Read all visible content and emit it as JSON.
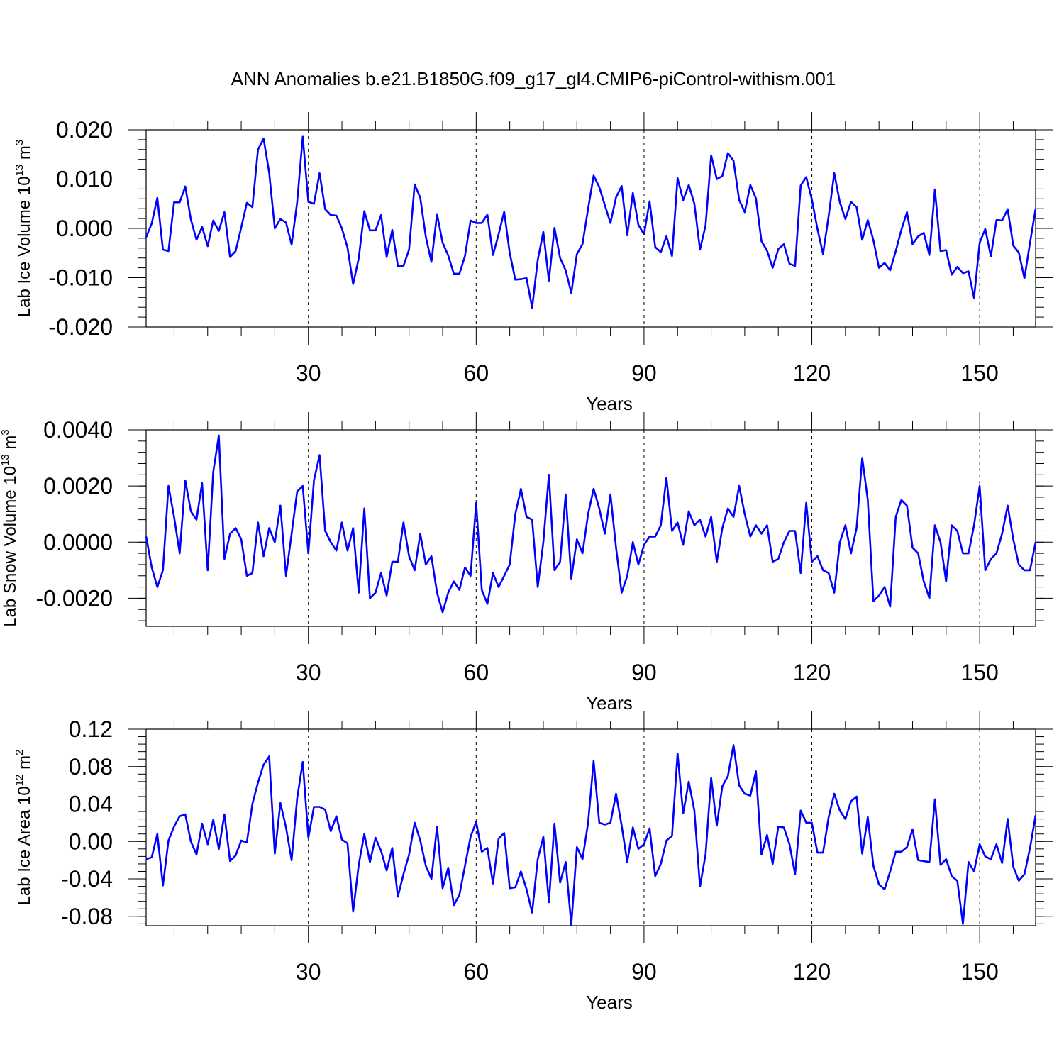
{
  "title": "ANN Anomalies b.e21.B1850G.f09_g17_gl4.CMIP6-piControl-withism.001",
  "line_color": "#0000ff",
  "chart_data": [
    {
      "type": "line",
      "ylabel": "Lab Ice Volume 10^13 m^3",
      "ylabel_base": "Lab Ice Volume 10",
      "ylabel_exp1": "13",
      "ylabel_unit": "m",
      "ylabel_exp2": "3",
      "xlabel": "Years",
      "xlim": [
        1,
        160
      ],
      "ylim": [
        -0.02,
        0.02
      ],
      "xticks": [
        30,
        60,
        90,
        120,
        150
      ],
      "xtick_labels": [
        "30",
        "60",
        "90",
        "120",
        "150"
      ],
      "yticks": [
        -0.02,
        -0.01,
        0.0,
        0.01,
        0.02
      ],
      "ytick_labels": [
        "-0.020",
        "-0.010",
        "0.000",
        "0.010",
        "0.020"
      ],
      "y_minor_step": 0.002,
      "grid": "dashed vertical lines at 30, 60, 90, 120, 150",
      "series": [
        {
          "values": [
            -0.0018,
            0.001,
            0.0062,
            -0.0043,
            -0.0046,
            0.0053,
            0.0053,
            0.0085,
            0.0018,
            -0.0023,
            0.0003,
            -0.0036,
            0.0016,
            -0.0005,
            0.0033,
            -0.0058,
            -0.0046,
            0.0002,
            0.0052,
            0.0043,
            0.016,
            0.0182,
            0.0113,
            0.0,
            0.0019,
            0.0012,
            -0.0033,
            0.0053,
            0.0186,
            0.0054,
            0.005,
            0.0112,
            0.0039,
            0.0027,
            0.0026,
            0.0,
            -0.0039,
            -0.0113,
            -0.0061,
            0.0035,
            -0.0004,
            -0.0004,
            0.0027,
            -0.0058,
            -0.0003,
            -0.0076,
            -0.0076,
            -0.0043,
            0.0089,
            0.0062,
            -0.0017,
            -0.0068,
            0.0029,
            -0.0029,
            -0.0055,
            -0.0092,
            -0.0092,
            -0.0056,
            0.0016,
            0.0011,
            0.0011,
            0.0028,
            -0.0054,
            -0.0012,
            0.0034,
            -0.005,
            -0.0104,
            -0.0103,
            -0.0101,
            -0.0161,
            -0.0064,
            -0.0007,
            -0.0106,
            0.0001,
            -0.006,
            -0.0085,
            -0.0131,
            -0.0052,
            -0.0032,
            0.004,
            0.0107,
            0.0084,
            0.0047,
            0.0011,
            0.0063,
            0.0086,
            -0.0014,
            0.0072,
            0.0007,
            -0.0012,
            0.0055,
            -0.0038,
            -0.0048,
            -0.0016,
            -0.0056,
            0.0102,
            0.0057,
            0.0088,
            0.005,
            -0.0043,
            0.0006,
            0.0148,
            0.01,
            0.0106,
            0.0153,
            0.0137,
            0.0058,
            0.0033,
            0.0088,
            0.0061,
            -0.0026,
            -0.0045,
            -0.008,
            -0.0042,
            -0.0032,
            -0.0072,
            -0.0076,
            0.0087,
            0.0104,
            0.0059,
            -0.0001,
            -0.0052,
            0.0025,
            0.0112,
            0.0053,
            0.0019,
            0.0054,
            0.0043,
            -0.0023,
            0.0017,
            -0.0024,
            -0.008,
            -0.007,
            -0.0085,
            -0.0046,
            -0.0003,
            0.0033,
            -0.0032,
            -0.0016,
            -0.0009,
            -0.0054,
            0.0079,
            -0.0046,
            -0.0044,
            -0.0094,
            -0.0078,
            -0.0091,
            -0.0087,
            -0.0141,
            -0.0029,
            -0.0001,
            -0.0057,
            0.0017,
            0.0016,
            0.0039,
            -0.0035,
            -0.0049,
            -0.0101,
            -0.0029,
            0.004
          ]
        }
      ]
    },
    {
      "type": "line",
      "ylabel": "Lab Snow Volume 10^13 m^3",
      "ylabel_base": "Lab Snow Volume 10",
      "ylabel_exp1": "13",
      "ylabel_unit": "m",
      "ylabel_exp2": "3",
      "xlabel": "Years",
      "xlim": [
        1,
        160
      ],
      "ylim": [
        -0.003,
        0.004
      ],
      "xticks": [
        30,
        60,
        90,
        120,
        150
      ],
      "xtick_labels": [
        "30",
        "60",
        "90",
        "120",
        "150"
      ],
      "yticks": [
        -0.002,
        0.0,
        0.002,
        0.004
      ],
      "ytick_labels": [
        "-0.0020",
        "0.0000",
        "0.0020",
        "0.0040"
      ],
      "y_minor_step": 0.0004,
      "grid": "dashed vertical lines at 30, 60, 90, 120, 150",
      "series": [
        {
          "values": [
            0.0002,
            -0.0009,
            -0.0016,
            -0.001,
            0.002,
            0.0009,
            -0.0004,
            0.0022,
            0.0011,
            0.0008,
            0.0021,
            -0.001,
            0.0025,
            0.0038,
            -0.0006,
            0.0003,
            0.0005,
            0.0001,
            -0.0012,
            -0.0011,
            0.0007,
            -0.0005,
            0.0005,
            0.0,
            0.0013,
            -0.0012,
            0.0003,
            0.0018,
            0.002,
            -0.0004,
            0.0022,
            0.0031,
            0.0004,
            0.0,
            -0.0003,
            0.0007,
            -0.0003,
            0.0005,
            -0.0018,
            0.0012,
            -0.002,
            -0.0018,
            -0.0011,
            -0.0019,
            -0.0007,
            -0.0007,
            0.0007,
            -0.0005,
            -0.001,
            0.0003,
            -0.0008,
            -0.0005,
            -0.0018,
            -0.0025,
            -0.0018,
            -0.0014,
            -0.0017,
            -0.0009,
            -0.0012,
            0.0014,
            -0.0017,
            -0.0022,
            -0.0011,
            -0.0016,
            -0.0012,
            -0.0008,
            0.001,
            0.0019,
            0.0009,
            0.0008,
            -0.0016,
            0.0,
            0.0024,
            -0.001,
            -0.0007,
            0.0017,
            -0.0013,
            0.0001,
            -0.0004,
            0.001,
            0.0019,
            0.0012,
            0.0003,
            0.0017,
            -0.0002,
            -0.0018,
            -0.0012,
            0.0,
            -0.0008,
            -0.0001,
            0.0002,
            0.0002,
            0.0006,
            0.0023,
            0.0004,
            0.0007,
            -0.0001,
            0.0011,
            0.0006,
            0.0008,
            0.0002,
            0.0009,
            -0.0007,
            0.0005,
            0.0012,
            0.0009,
            0.002,
            0.001,
            0.0002,
            0.0006,
            0.0003,
            0.0006,
            -0.0007,
            -0.0006,
            0.0,
            0.0004,
            0.0004,
            -0.0011,
            0.0014,
            -0.0007,
            -0.0005,
            -0.001,
            -0.0011,
            -0.0018,
            0.0,
            0.0006,
            -0.0004,
            0.0005,
            0.003,
            0.0015,
            -0.0021,
            -0.0019,
            -0.0016,
            -0.0023,
            0.0009,
            0.0015,
            0.0013,
            -0.0002,
            -0.0004,
            -0.0014,
            -0.002,
            0.0006,
            0.0,
            -0.0014,
            0.0006,
            0.0004,
            -0.0004,
            -0.0004,
            0.0006,
            0.002,
            -0.001,
            -0.0006,
            -0.0004,
            0.0003,
            0.0013,
            0.0001,
            -0.0008,
            -0.001,
            -0.001,
            0.0
          ]
        }
      ]
    },
    {
      "type": "line",
      "ylabel": "Lab Ice Area 10^12 m^2",
      "ylabel_base": "Lab Ice Area 10",
      "ylabel_exp1": "12",
      "ylabel_unit": "m",
      "ylabel_exp2": "2",
      "xlabel": "Years",
      "xlim": [
        1,
        160
      ],
      "ylim": [
        -0.09,
        0.12
      ],
      "xticks": [
        30,
        60,
        90,
        120,
        150
      ],
      "xtick_labels": [
        "30",
        "60",
        "90",
        "120",
        "150"
      ],
      "yticks": [
        -0.08,
        -0.04,
        0.0,
        0.04,
        0.08,
        0.12
      ],
      "ytick_labels": [
        "-0.08",
        "-0.04",
        "0.00",
        "0.04",
        "0.08",
        "0.12"
      ],
      "y_minor_step": 0.008,
      "grid": "dashed vertical lines at 30, 60, 90, 120, 150",
      "series": [
        {
          "values": [
            -0.019,
            -0.017,
            0.008,
            -0.047,
            0.001,
            0.016,
            0.027,
            0.029,
            0.0,
            -0.014,
            0.019,
            -0.003,
            0.023,
            -0.008,
            0.029,
            -0.021,
            -0.015,
            0.001,
            -0.001,
            0.04,
            0.063,
            0.082,
            0.091,
            -0.013,
            0.041,
            0.015,
            -0.02,
            0.046,
            0.085,
            0.004,
            0.037,
            0.037,
            0.034,
            0.011,
            0.027,
            0.002,
            -0.002,
            -0.075,
            -0.025,
            0.008,
            -0.022,
            0.004,
            -0.01,
            -0.031,
            -0.007,
            -0.059,
            -0.035,
            -0.014,
            0.02,
            0.001,
            -0.026,
            -0.04,
            0.016,
            -0.05,
            -0.028,
            -0.068,
            -0.057,
            -0.026,
            0.005,
            0.021,
            -0.011,
            -0.007,
            -0.045,
            0.003,
            0.009,
            -0.05,
            -0.049,
            -0.032,
            -0.051,
            -0.076,
            -0.019,
            0.005,
            -0.065,
            0.019,
            -0.044,
            -0.022,
            -0.089,
            -0.006,
            -0.019,
            0.02,
            0.086,
            0.02,
            0.018,
            0.02,
            0.051,
            0.017,
            -0.022,
            0.015,
            -0.008,
            -0.003,
            0.014,
            -0.037,
            -0.024,
            0.001,
            0.006,
            0.094,
            0.03,
            0.064,
            0.033,
            -0.048,
            -0.014,
            0.068,
            0.017,
            0.059,
            0.07,
            0.103,
            0.06,
            0.051,
            0.049,
            0.075,
            -0.014,
            0.007,
            -0.024,
            0.016,
            0.015,
            -0.003,
            -0.035,
            0.033,
            0.02,
            0.02,
            -0.012,
            -0.012,
            0.026,
            0.051,
            0.033,
            0.024,
            0.043,
            0.048,
            -0.013,
            0.026,
            -0.026,
            -0.046,
            -0.051,
            -0.032,
            -0.011,
            -0.011,
            -0.006,
            0.013,
            -0.02,
            -0.021,
            -0.022,
            0.045,
            -0.025,
            -0.019,
            -0.037,
            -0.042,
            -0.088,
            -0.022,
            -0.032,
            -0.003,
            -0.016,
            -0.019,
            -0.003,
            -0.023,
            0.024,
            -0.027,
            -0.042,
            -0.035,
            -0.007,
            0.028
          ]
        }
      ]
    }
  ]
}
